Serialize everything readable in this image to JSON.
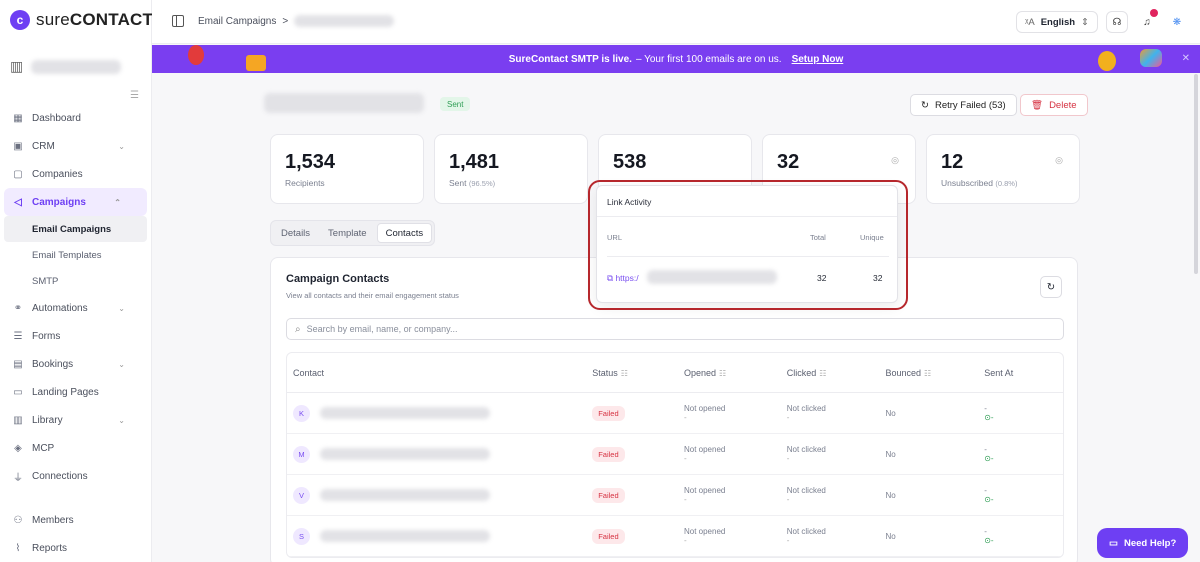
{
  "brand": {
    "name_bold": "sure",
    "name_rest": "CONTACT",
    "accent": "#6e3ff3"
  },
  "sidebar": {
    "items": [
      {
        "label": "Dashboard",
        "icon": "grid-icon"
      },
      {
        "label": "CRM",
        "icon": "contact-card-icon",
        "chevron": "⌄"
      },
      {
        "label": "Companies",
        "icon": "building-icon"
      },
      {
        "label": "Campaigns",
        "icon": "megaphone-icon",
        "chevron": "⌃"
      },
      {
        "label": "Automations",
        "icon": "flow-icon",
        "chevron": "⌄"
      },
      {
        "label": "Forms",
        "icon": "form-icon"
      },
      {
        "label": "Bookings",
        "icon": "calendar-icon",
        "chevron": "⌄"
      },
      {
        "label": "Landing Pages",
        "icon": "layout-icon"
      },
      {
        "label": "Library",
        "icon": "library-icon",
        "chevron": "⌄"
      },
      {
        "label": "MCP",
        "icon": "mcp-icon"
      },
      {
        "label": "Connections",
        "icon": "plug-icon"
      },
      {
        "label": "Members",
        "icon": "users-icon"
      },
      {
        "label": "Reports",
        "icon": "chart-icon"
      }
    ],
    "sub_items": [
      "Email Campaigns",
      "Email Templates",
      "SMTP"
    ]
  },
  "topbar": {
    "breadcrumb_root": "Email Campaigns",
    "breadcrumb_sep": ">",
    "language": "English"
  },
  "banner": {
    "bold": "SureContact SMTP is live.",
    "text": "– Your first 100 emails are on us.",
    "link": "Setup Now"
  },
  "campaign": {
    "status_badge": "Sent",
    "retry_label": "Retry Failed (53)",
    "delete_label": "Delete",
    "stats": [
      {
        "value": "1,534",
        "label": "Recipients",
        "pct": ""
      },
      {
        "value": "1,481",
        "label": "Sent",
        "pct": "(96.5%)"
      },
      {
        "value": "538",
        "label": "",
        "pct": ""
      },
      {
        "value": "32",
        "label": "",
        "pct": ""
      },
      {
        "value": "12",
        "label": "Unsubscribed",
        "pct": "(0.8%)"
      }
    ],
    "tabs": [
      "Details",
      "Template",
      "Contacts"
    ]
  },
  "contacts": {
    "title": "Campaign Contacts",
    "subtitle": "View all contacts and their email engagement status",
    "search_placeholder": "Search by email, name, or company...",
    "columns": [
      "Contact",
      "Status",
      "Opened",
      "Clicked",
      "Bounced",
      "Sent At"
    ],
    "rows": [
      {
        "initial": "K",
        "status": "Failed",
        "opened": "Not opened",
        "clicked": "Not clicked",
        "bounced": "No",
        "sent_top": "-",
        "sent_bottom": "-"
      },
      {
        "initial": "M",
        "status": "Failed",
        "opened": "Not opened",
        "clicked": "Not clicked",
        "bounced": "No",
        "sent_top": "-",
        "sent_bottom": "-"
      },
      {
        "initial": "V",
        "status": "Failed",
        "opened": "Not opened",
        "clicked": "Not clicked",
        "bounced": "No",
        "sent_top": "-",
        "sent_bottom": "-"
      },
      {
        "initial": "S",
        "status": "Failed",
        "opened": "Not opened",
        "clicked": "Not clicked",
        "bounced": "No",
        "sent_top": "-",
        "sent_bottom": "-"
      }
    ],
    "dash": "-"
  },
  "link_activity": {
    "title": "Link Activity",
    "col_url": "URL",
    "col_total": "Total",
    "col_unique": "Unique",
    "url": "https:/",
    "total": "32",
    "unique": "32"
  },
  "help_label": "Need Help?"
}
